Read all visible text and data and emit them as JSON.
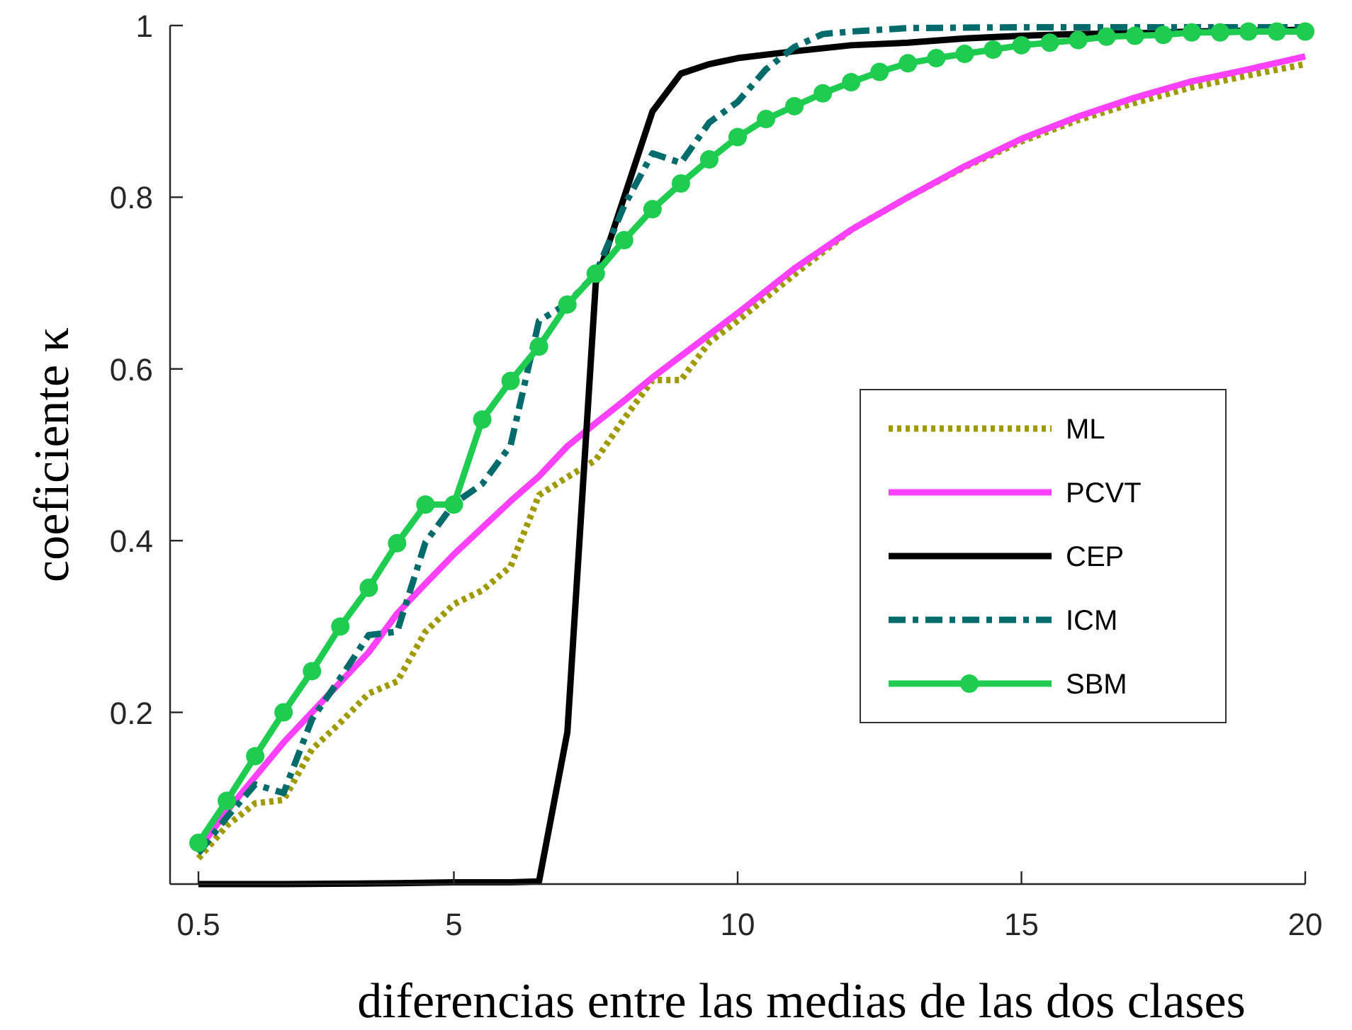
{
  "chart_data": {
    "type": "line",
    "xlabel": "diferencias entre las medias de las dos clases",
    "ylabel": "coeficiente κ",
    "xlim": [
      0,
      20
    ],
    "xticks": [
      0.5,
      5,
      10,
      15,
      20
    ],
    "ylim": [
      0,
      1
    ],
    "yticks": [
      0.2,
      0.4,
      0.6,
      0.8,
      1
    ],
    "grid": false,
    "legend": "right",
    "series": [
      {
        "name": "ML",
        "color": "#9e9a00",
        "line_style": "dotted",
        "marker": "none",
        "x": [
          0.5,
          1,
          1.5,
          2,
          2.5,
          3,
          3.5,
          4,
          4.5,
          5,
          5.5,
          6,
          6.5,
          7,
          7.5,
          8,
          8.5,
          9,
          9.5,
          10,
          11,
          12,
          13,
          14,
          15,
          16,
          17,
          18,
          19,
          20
        ],
        "values": [
          0.03,
          0.068,
          0.094,
          0.098,
          0.157,
          0.188,
          0.222,
          0.236,
          0.294,
          0.326,
          0.342,
          0.37,
          0.453,
          0.474,
          0.494,
          0.542,
          0.587,
          0.587,
          0.631,
          0.656,
          0.71,
          0.762,
          0.8,
          0.835,
          0.865,
          0.89,
          0.91,
          0.928,
          0.942,
          0.955
        ]
      },
      {
        "name": "PCVT",
        "color": "#ff40ff",
        "line_style": "solid",
        "marker": "none",
        "x": [
          0.5,
          1,
          1.5,
          2,
          2.5,
          3,
          3.5,
          4,
          4.5,
          5,
          5.5,
          6,
          6.5,
          7,
          7.5,
          8,
          8.5,
          9,
          9.5,
          10,
          11,
          12,
          13,
          14,
          15,
          16,
          17,
          18,
          19,
          20
        ],
        "values": [
          0.04,
          0.085,
          0.125,
          0.165,
          0.2,
          0.235,
          0.27,
          0.315,
          0.35,
          0.384,
          0.415,
          0.446,
          0.475,
          0.51,
          0.537,
          0.563,
          0.59,
          0.615,
          0.64,
          0.665,
          0.717,
          0.762,
          0.8,
          0.836,
          0.868,
          0.894,
          0.916,
          0.935,
          0.949,
          0.964
        ]
      },
      {
        "name": "CEP",
        "color": "#000000",
        "line_style": "solid",
        "marker": "none",
        "x": [
          0.5,
          2,
          4,
          5,
          6,
          6.5,
          7,
          7.5,
          8,
          8.5,
          9,
          9.5,
          10,
          11,
          12,
          13,
          14,
          15,
          16,
          17,
          18,
          19,
          20
        ],
        "values": [
          0,
          0,
          0.001,
          0.002,
          0.002,
          0.003,
          0.177,
          0.7,
          0.8,
          0.9,
          0.944,
          0.955,
          0.962,
          0.97,
          0.977,
          0.98,
          0.985,
          0.988,
          0.99,
          0.991,
          0.993,
          0.994,
          0.995
        ]
      },
      {
        "name": "ICM",
        "color": "#006b6b",
        "line_style": "dashdot",
        "marker": "none",
        "x": [
          0.5,
          1,
          1.5,
          2,
          2.5,
          3,
          3.5,
          4,
          4.5,
          5,
          5.5,
          6,
          6.5,
          7,
          7.5,
          8,
          8.5,
          9,
          9.5,
          10,
          10.5,
          11,
          11.5,
          12,
          12.5,
          13,
          15,
          17,
          20
        ],
        "values": [
          0.036,
          0.078,
          0.116,
          0.106,
          0.192,
          0.24,
          0.29,
          0.294,
          0.398,
          0.443,
          0.466,
          0.511,
          0.656,
          0.676,
          0.711,
          0.79,
          0.851,
          0.84,
          0.887,
          0.911,
          0.949,
          0.975,
          0.99,
          0.993,
          0.995,
          0.997,
          0.998,
          0.998,
          0.998
        ]
      },
      {
        "name": "SBM",
        "color": "#1ecc50",
        "line_style": "solid",
        "marker": "circle",
        "x": [
          0.5,
          1,
          1.5,
          2,
          2.5,
          3,
          3.5,
          4,
          4.5,
          5,
          5.5,
          6,
          6.5,
          7,
          7.5,
          8,
          8.5,
          9,
          9.5,
          10,
          10.5,
          11,
          11.5,
          12,
          12.5,
          13,
          13.5,
          14,
          14.5,
          15,
          15.5,
          16,
          16.5,
          17,
          17.5,
          18,
          18.5,
          19,
          19.5,
          20
        ],
        "values": [
          0.048,
          0.097,
          0.149,
          0.2,
          0.248,
          0.3,
          0.345,
          0.397,
          0.442,
          0.442,
          0.541,
          0.586,
          0.626,
          0.675,
          0.711,
          0.75,
          0.786,
          0.816,
          0.844,
          0.87,
          0.891,
          0.906,
          0.921,
          0.934,
          0.946,
          0.956,
          0.962,
          0.967,
          0.972,
          0.977,
          0.98,
          0.983,
          0.987,
          0.988,
          0.989,
          0.992,
          0.992,
          0.993,
          0.993,
          0.993
        ]
      }
    ]
  }
}
